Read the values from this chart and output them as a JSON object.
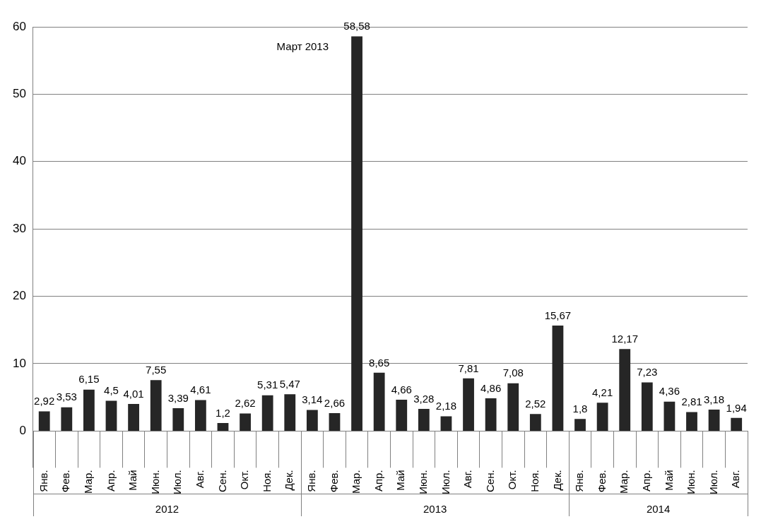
{
  "chart_data": {
    "type": "bar",
    "categories": [
      "Янв.",
      "Фев.",
      "Мар.",
      "Апр.",
      "Май",
      "Июн.",
      "Июл.",
      "Авг.",
      "Сен.",
      "Окт.",
      "Ноя.",
      "Дек.",
      "Янв.",
      "Фев.",
      "Мар.",
      "Апр.",
      "Май",
      "Июн.",
      "Июл.",
      "Авг.",
      "Сен.",
      "Окт.",
      "Ноя.",
      "Дек.",
      "Янв.",
      "Фев.",
      "Мар.",
      "Апр.",
      "Май",
      "Июн.",
      "Июл.",
      "Авг."
    ],
    "values": [
      2.92,
      3.53,
      6.15,
      4.5,
      4.01,
      7.55,
      3.39,
      4.61,
      1.2,
      2.62,
      5.31,
      5.47,
      3.14,
      2.66,
      58.58,
      8.65,
      4.66,
      3.28,
      2.18,
      7.81,
      4.86,
      7.08,
      2.52,
      15.67,
      1.8,
      4.21,
      12.17,
      7.23,
      4.36,
      2.81,
      3.18,
      1.94
    ],
    "value_labels": [
      "2,92",
      "3,53",
      "6,15",
      "4,5",
      "4,01",
      "7,55",
      "3,39",
      "4,61",
      "1,2",
      "2,62",
      "5,31",
      "5,47",
      "3,14",
      "2,66",
      "58,58",
      "8,65",
      "4,66",
      "3,28",
      "2,18",
      "7,81",
      "4,86",
      "7,08",
      "2,52",
      "15,67",
      "1,8",
      "4,21",
      "12,17",
      "7,23",
      "4,36",
      "2,81",
      "3,18",
      "1,94"
    ],
    "color": "#262626",
    "ylim": [
      0,
      60
    ],
    "yticks": [
      0,
      10,
      20,
      30,
      40,
      50,
      60
    ],
    "grid": "y",
    "legend": false,
    "annotations": [
      "Март 2013",
      "2012",
      "2013",
      "2014"
    ]
  }
}
